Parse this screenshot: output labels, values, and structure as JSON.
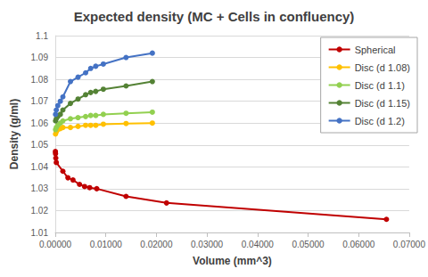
{
  "chart_data": {
    "type": "line",
    "title": "Expected density (MC + Cells in confluency)",
    "x_label": "Volume (mm^3)",
    "y_label": "Density (g/ml)",
    "xlim": [
      0,
      0.07
    ],
    "xticks": [
      {
        "value": 0,
        "label": "0.00000"
      },
      {
        "value": 0.01,
        "label": "0.01000"
      },
      {
        "value": 0.02,
        "label": "0.02000"
      },
      {
        "value": 0.03,
        "label": "0.03000"
      },
      {
        "value": 0.04,
        "label": "0.04000"
      },
      {
        "value": 0.05,
        "label": "0.05000"
      },
      {
        "value": 0.06,
        "label": "0.06000"
      },
      {
        "value": 0.07,
        "label": "0.07000"
      }
    ],
    "ylim": [
      1.01,
      1.1
    ],
    "yticks": [
      1.01,
      1.02,
      1.03,
      1.04,
      1.05,
      1.06,
      1.07,
      1.08,
      1.09,
      1.1
    ],
    "grid": true,
    "legend": "right",
    "marker": "circle",
    "series": [
      {
        "name": "Spherical",
        "color": "#c00000",
        "x": [
          2e-05,
          5e-05,
          0.0001,
          0.0002,
          0.0015,
          0.0025,
          0.0035,
          0.0048,
          0.0058,
          0.0068,
          0.0082,
          0.014,
          0.022,
          0.0655
        ],
        "values": [
          1.047,
          1.046,
          1.044,
          1.042,
          1.038,
          1.035,
          1.034,
          1.032,
          1.031,
          1.0305,
          1.03,
          1.0265,
          1.0235,
          1.016
        ]
      },
      {
        "name": "Disc (d 1.08)",
        "color": "#ffc000",
        "x": [
          5e-05,
          0.0002,
          0.0005,
          0.001,
          0.0015,
          0.003,
          0.0045,
          0.006,
          0.007,
          0.008,
          0.0095,
          0.014,
          0.0192
        ],
        "values": [
          1.055,
          1.056,
          1.057,
          1.0575,
          1.058,
          1.058,
          1.0585,
          1.059,
          1.059,
          1.059,
          1.0595,
          1.0598,
          1.06
        ]
      },
      {
        "name": "Disc (d 1.1)",
        "color": "#92d050",
        "x": [
          5e-05,
          0.0002,
          0.0005,
          0.001,
          0.0015,
          0.003,
          0.0045,
          0.006,
          0.007,
          0.008,
          0.0095,
          0.014,
          0.0192
        ],
        "values": [
          1.057,
          1.058,
          1.059,
          1.06,
          1.061,
          1.062,
          1.0625,
          1.063,
          1.0635,
          1.0635,
          1.064,
          1.0645,
          1.065
        ]
      },
      {
        "name": "Disc (d 1.15)",
        "color": "#548235",
        "x": [
          5e-05,
          0.0002,
          0.0005,
          0.001,
          0.0015,
          0.003,
          0.0045,
          0.006,
          0.007,
          0.008,
          0.0095,
          0.014,
          0.0192
        ],
        "values": [
          1.061,
          1.062,
          1.063,
          1.064,
          1.066,
          1.069,
          1.071,
          1.073,
          1.074,
          1.0745,
          1.0755,
          1.077,
          1.079
        ]
      },
      {
        "name": "Disc (d 1.2)",
        "color": "#4472c4",
        "x": [
          5e-05,
          0.0002,
          0.0005,
          0.001,
          0.0015,
          0.003,
          0.0045,
          0.006,
          0.007,
          0.008,
          0.0095,
          0.014,
          0.0192
        ],
        "values": [
          1.064,
          1.066,
          1.068,
          1.07,
          1.072,
          1.079,
          1.081,
          1.083,
          1.085,
          1.086,
          1.087,
          1.09,
          1.092
        ]
      }
    ]
  }
}
